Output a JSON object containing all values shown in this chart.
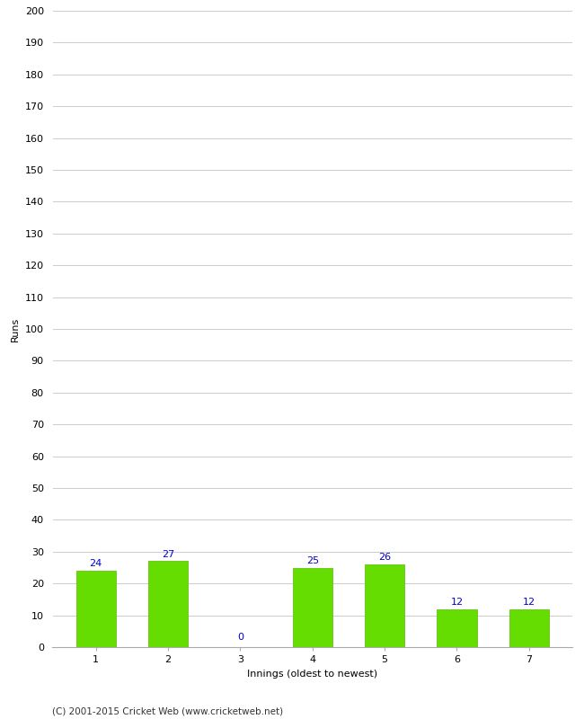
{
  "categories": [
    "1",
    "2",
    "3",
    "4",
    "5",
    "6",
    "7"
  ],
  "values": [
    24,
    27,
    0,
    25,
    26,
    12,
    12
  ],
  "bar_color": "#66dd00",
  "bar_edge_color": "#55bb00",
  "label_color": "#0000cc",
  "xlabel": "Innings (oldest to newest)",
  "ylabel": "Runs",
  "ylim": [
    0,
    200
  ],
  "background_color": "#ffffff",
  "grid_color": "#cccccc",
  "footer": "(C) 2001-2015 Cricket Web (www.cricketweb.net)",
  "tick_label_fontsize": 8,
  "axis_label_fontsize": 8,
  "value_label_fontsize": 8
}
